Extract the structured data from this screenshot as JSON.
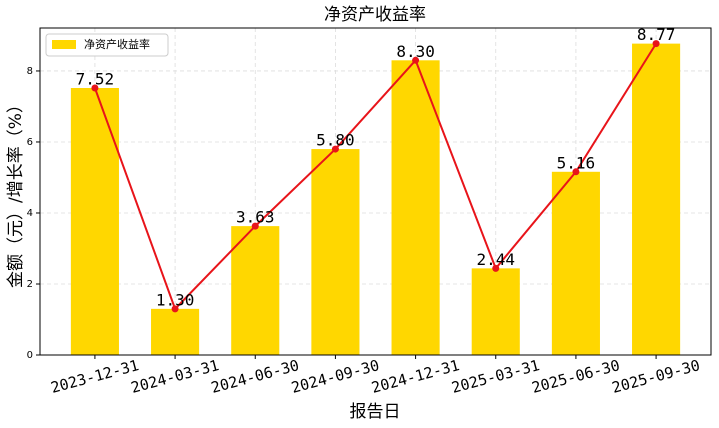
{
  "chart_data": {
    "type": "bar",
    "title": "净资产收益率",
    "xlabel": "报告日",
    "ylabel": "金额（元）/增长率（%）",
    "categories": [
      "2023-12-31",
      "2024-03-31",
      "2024-06-30",
      "2024-09-30",
      "2024-12-31",
      "2025-03-31",
      "2025-06-30",
      "2025-09-30"
    ],
    "series": [
      {
        "name": "净资产收益率",
        "color": "#ffd700",
        "values": [
          7.52,
          1.3,
          3.63,
          5.8,
          8.3,
          2.44,
          5.16,
          8.77
        ],
        "value_labels": [
          "7.52",
          "1.30",
          "3.63",
          "5.80",
          "8.30",
          "2.44",
          "5.16",
          "8.77"
        ]
      }
    ],
    "line_color": "#e8141a",
    "ylim": [
      0,
      9.21
    ],
    "yticks": [
      0,
      2,
      4,
      6,
      8
    ],
    "grid": true,
    "legend": "upper left"
  }
}
